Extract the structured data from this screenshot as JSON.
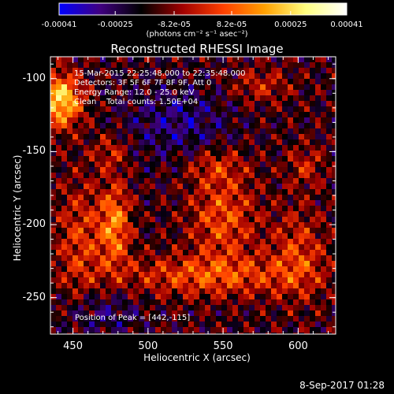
{
  "colorbar": {
    "ticks": [
      "-0.00041",
      "-0.00025",
      "-8.2e-05",
      "8.2e-05",
      "0.00025",
      "0.00041"
    ],
    "tick_values": [
      -0.00041,
      -0.00025,
      -8.2e-05,
      8.2e-05,
      0.00025,
      0.00041
    ],
    "units": "(photons cm⁻² s⁻¹ asec⁻²)",
    "colormap": [
      "#0000ff",
      "#400080",
      "#000000",
      "#a00000",
      "#ff4000",
      "#ffa000",
      "#ffff80",
      "#ffffff"
    ]
  },
  "chart_data": {
    "type": "heatmap",
    "title": "Reconstructed RHESSI Image",
    "xlabel": "Heliocentric X (arcsec)",
    "ylabel": "Heliocentric Y (arcsec)",
    "xlim": [
      435,
      625
    ],
    "ylim": [
      -275,
      -85
    ],
    "x_ticks": [
      "450",
      "500",
      "550",
      "600"
    ],
    "x_tick_values": [
      450,
      500,
      550,
      600
    ],
    "y_ticks": [
      "-100",
      "-150",
      "-200",
      "-250"
    ],
    "y_tick_values": [
      -100,
      -150,
      -200,
      -250
    ],
    "peak_position": [
      442,
      -115
    ],
    "value_range": [
      -0.00041,
      0.00041
    ]
  },
  "info": {
    "line1": "15-Mar-2015 22:25:48.000 to 22:35:48.000",
    "line2": "Detectors: 3F 5F 6F 7F 8F 9F, Att 0",
    "line3": "Energy Range: 12.0 - 25.0 keV",
    "line4": "Clean    Total counts: 1.50E+04"
  },
  "peak_label": "Position of Peak = [442,-115]",
  "timestamp": "8-Sep-2017 01:28"
}
